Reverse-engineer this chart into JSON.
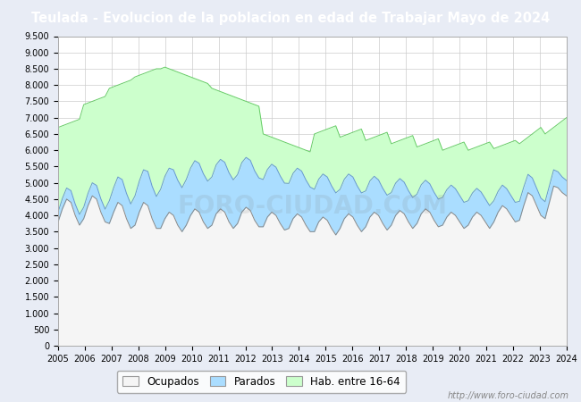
{
  "title": "Teulada - Evolucion de la poblacion en edad de Trabajar Mayo de 2024",
  "title_bg": "#4472C4",
  "title_color": "#FFFFFF",
  "ylabel_ticks": [
    0,
    500,
    1000,
    1500,
    2000,
    2500,
    3000,
    3500,
    4000,
    4500,
    5000,
    5500,
    6000,
    6500,
    7000,
    7500,
    8000,
    8500,
    9000,
    9500
  ],
  "x_labels": [
    "2005",
    "2006",
    "2007",
    "2008",
    "2009",
    "2010",
    "2011",
    "2012",
    "2013",
    "2014",
    "2015",
    "2016",
    "2017",
    "2018",
    "2019",
    "2020",
    "2021",
    "2022",
    "2023",
    "2024"
  ],
  "hab_data": [
    6700,
    6750,
    6800,
    6850,
    6900,
    6950,
    7400,
    7450,
    7500,
    7550,
    7600,
    7650,
    7900,
    7950,
    8000,
    8050,
    8100,
    8150,
    8250,
    8300,
    8350,
    8400,
    8450,
    8500,
    8500,
    8550,
    8500,
    8450,
    8400,
    8350,
    8300,
    8250,
    8200,
    8150,
    8100,
    8050,
    7900,
    7850,
    7800,
    7750,
    7700,
    7650,
    7600,
    7550,
    7500,
    7450,
    7400,
    7350,
    6500,
    6450,
    6400,
    6350,
    6300,
    6250,
    6200,
    6150,
    6100,
    6050,
    6000,
    5950,
    6500,
    6550,
    6600,
    6650,
    6700,
    6750,
    6400,
    6450,
    6500,
    6550,
    6600,
    6650,
    6300,
    6350,
    6400,
    6450,
    6500,
    6550,
    6200,
    6250,
    6300,
    6350,
    6400,
    6450,
    6100,
    6150,
    6200,
    6250,
    6300,
    6350,
    6000,
    6050,
    6100,
    6150,
    6200,
    6250,
    6000,
    6050,
    6100,
    6150,
    6200,
    6250,
    6050,
    6100,
    6150,
    6200,
    6250,
    6300,
    6200,
    6300,
    6400,
    6500,
    6600,
    6700,
    6500,
    6600,
    6700,
    6800,
    6900,
    7000
  ],
  "parados_data": [
    300,
    320,
    340,
    360,
    350,
    330,
    350,
    380,
    400,
    420,
    410,
    390,
    700,
    750,
    780,
    800,
    780,
    750,
    900,
    950,
    1000,
    1050,
    1000,
    980,
    1200,
    1300,
    1350,
    1400,
    1380,
    1350,
    1400,
    1450,
    1480,
    1500,
    1480,
    1450,
    1480,
    1500,
    1520,
    1530,
    1510,
    1490,
    1500,
    1520,
    1530,
    1540,
    1520,
    1500,
    1450,
    1460,
    1470,
    1480,
    1460,
    1440,
    1380,
    1390,
    1400,
    1410,
    1390,
    1370,
    1300,
    1310,
    1320,
    1330,
    1310,
    1290,
    1200,
    1210,
    1220,
    1230,
    1210,
    1190,
    1100,
    1110,
    1100,
    1090,
    1080,
    1070,
    1000,
    990,
    980,
    970,
    960,
    950,
    900,
    890,
    880,
    870,
    860,
    850,
    850,
    840,
    830,
    820,
    810,
    800,
    750,
    740,
    730,
    720,
    710,
    700,
    650,
    640,
    630,
    620,
    610,
    600,
    580,
    570,
    560,
    550,
    540,
    530,
    520,
    510,
    500,
    490,
    480,
    470
  ],
  "ocupados_data": [
    3800,
    4200,
    4500,
    4400,
    4000,
    3700,
    3900,
    4300,
    4600,
    4500,
    4100,
    3800,
    3750,
    4100,
    4400,
    4300,
    3900,
    3600,
    3700,
    4100,
    4400,
    4300,
    3900,
    3600,
    3600,
    3900,
    4100,
    4000,
    3700,
    3500,
    3700,
    4000,
    4200,
    4100,
    3800,
    3600,
    3700,
    4050,
    4200,
    4100,
    3800,
    3600,
    3750,
    4100,
    4250,
    4150,
    3850,
    3650,
    3650,
    3950,
    4100,
    4000,
    3750,
    3550,
    3600,
    3900,
    4050,
    3950,
    3700,
    3500,
    3500,
    3800,
    3950,
    3850,
    3600,
    3400,
    3600,
    3900,
    4050,
    3950,
    3700,
    3500,
    3650,
    3950,
    4100,
    4000,
    3750,
    3550,
    3700,
    4000,
    4150,
    4050,
    3800,
    3600,
    3750,
    4050,
    4200,
    4100,
    3850,
    3650,
    3700,
    3950,
    4100,
    4000,
    3800,
    3600,
    3700,
    3950,
    4100,
    4000,
    3800,
    3600,
    3800,
    4100,
    4300,
    4200,
    4000,
    3800,
    3850,
    4300,
    4700,
    4600,
    4300,
    4000,
    3900,
    4400,
    4900,
    4850,
    4700,
    4600
  ],
  "hab_color": "#CCFFCC",
  "hab_edge": "#66CC66",
  "parados_color": "#AADDFF",
  "parados_edge": "#6699CC",
  "ocupados_color": "#F5F5F5",
  "ocupados_edge": "#888888",
  "bg_color": "#E8ECF5",
  "plot_bg": "#FFFFFF",
  "watermark": "http://www.foro-ciudad.com",
  "legend_labels": [
    "Ocupados",
    "Parados",
    "Hab. entre 16-64"
  ],
  "ylim": [
    0,
    9500
  ],
  "figsize": [
    6.5,
    4.5
  ],
  "dpi": 100
}
